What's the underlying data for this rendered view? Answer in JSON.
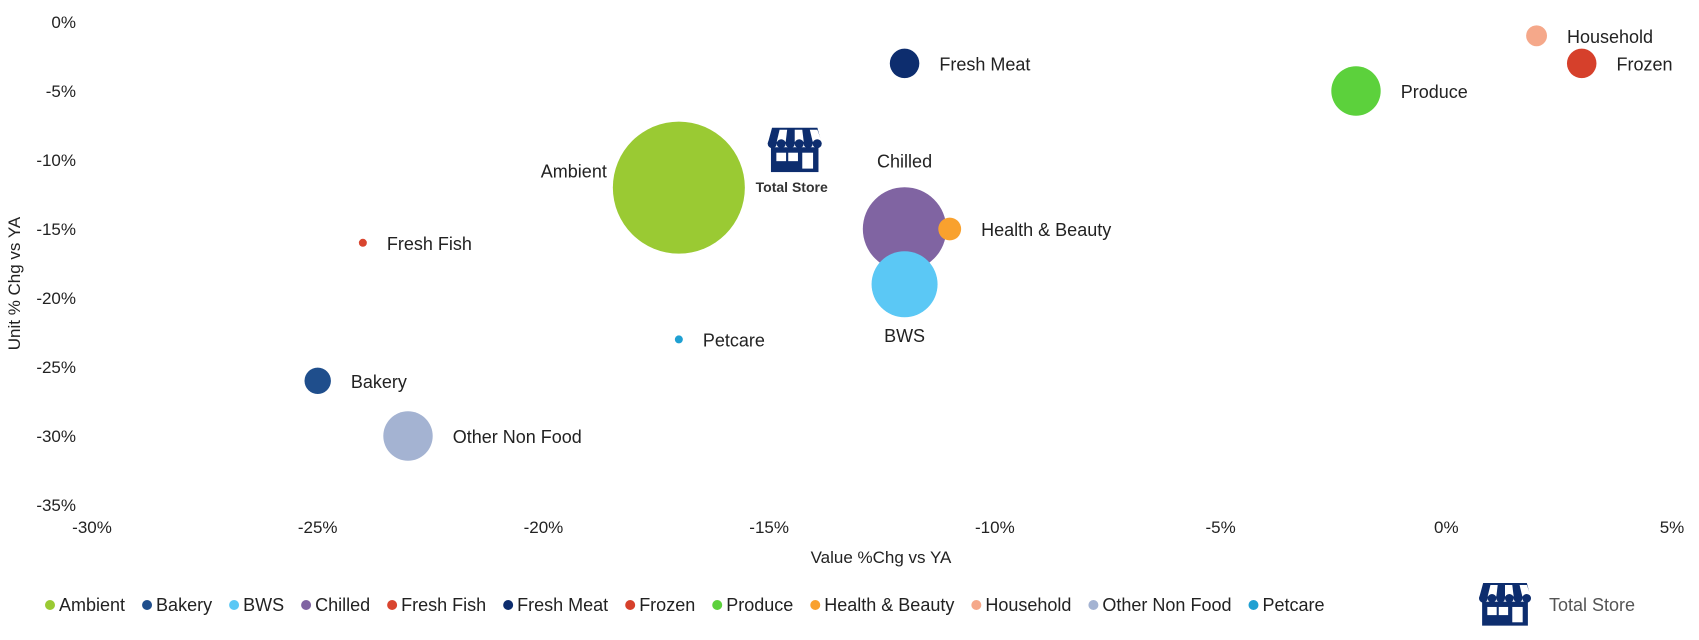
{
  "chart_data": {
    "type": "bubble",
    "xlabel": "Value %Chg vs YA",
    "ylabel": "Unit % Chg vs YA",
    "xlim": [
      -30,
      5
    ],
    "ylim": [
      -35,
      0
    ],
    "x_ticks": [
      "-30%",
      "-25%",
      "-20%",
      "-15%",
      "-10%",
      "-5%",
      "0%",
      "5%"
    ],
    "y_ticks": [
      "0%",
      "-5%",
      "-10%",
      "-15%",
      "-20%",
      "-25%",
      "-30%",
      "-35%"
    ],
    "grid": false,
    "legend_position": "bottom",
    "points": [
      {
        "name": "Ambient",
        "x": -17,
        "y": -12,
        "size": 100,
        "color": "#9ACA33",
        "label_pos": "left-top"
      },
      {
        "name": "Bakery",
        "x": -25,
        "y": -26,
        "size": 4,
        "color": "#1F4E8C",
        "label_pos": "right"
      },
      {
        "name": "BWS",
        "x": -12,
        "y": -19,
        "size": 25,
        "color": "#5BC8F5",
        "label_pos": "below"
      },
      {
        "name": "Chilled",
        "x": -12,
        "y": -15,
        "size": 40,
        "color": "#8064A2",
        "label_pos": "above"
      },
      {
        "name": "Fresh Fish",
        "x": -24,
        "y": -16,
        "size": 0.3,
        "color": "#D9452F",
        "label_pos": "right"
      },
      {
        "name": "Fresh Meat",
        "x": -12,
        "y": -3,
        "size": 5,
        "color": "#0D2D6E",
        "label_pos": "right"
      },
      {
        "name": "Frozen",
        "x": 3,
        "y": -3,
        "size": 5,
        "color": "#D6402B",
        "label_pos": "right"
      },
      {
        "name": "Produce",
        "x": -2,
        "y": -5,
        "size": 14,
        "color": "#5CD13C",
        "label_pos": "right"
      },
      {
        "name": "Health & Beauty",
        "x": -11,
        "y": -15,
        "size": 3,
        "color": "#F9A12E",
        "label_pos": "right"
      },
      {
        "name": "Household",
        "x": 2,
        "y": -1,
        "size": 2.5,
        "color": "#F5A88A",
        "label_pos": "right"
      },
      {
        "name": "Other Non Food",
        "x": -23,
        "y": -30,
        "size": 14,
        "color": "#A4B3D2",
        "label_pos": "right"
      },
      {
        "name": "Petcare",
        "x": -17,
        "y": -23,
        "size": 0.3,
        "color": "#1FA0D2",
        "label_pos": "right"
      }
    ],
    "total_store": {
      "name": "Total Store",
      "x": -14.5,
      "y": -11
    },
    "legend": [
      {
        "label": "Ambient",
        "color": "#9ACA33"
      },
      {
        "label": "Bakery",
        "color": "#1F4E8C"
      },
      {
        "label": "BWS",
        "color": "#5BC8F5"
      },
      {
        "label": "Chilled",
        "color": "#8064A2"
      },
      {
        "label": "Fresh Fish",
        "color": "#D9452F"
      },
      {
        "label": "Fresh Meat",
        "color": "#0D2D6E"
      },
      {
        "label": "Frozen",
        "color": "#D6402B"
      },
      {
        "label": "Produce",
        "color": "#5CD13C"
      },
      {
        "label": "Health & Beauty",
        "color": "#F9A12E"
      },
      {
        "label": "Household",
        "color": "#F5A88A"
      },
      {
        "label": "Other Non Food",
        "color": "#A4B3D2"
      },
      {
        "label": "Petcare",
        "color": "#1FA0D2"
      }
    ],
    "legend_total_store": "Total Store",
    "store_icon_color": "#0D2D6E"
  }
}
